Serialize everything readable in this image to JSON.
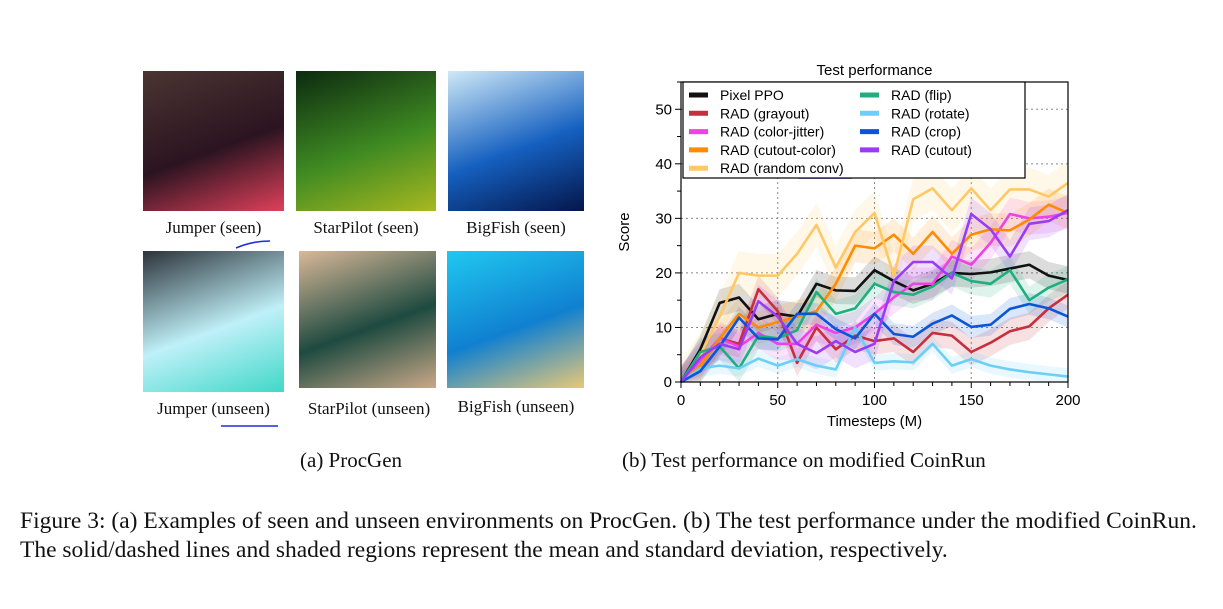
{
  "panel_a": {
    "thumbnails": [
      {
        "label": "Jumper (seen)",
        "colors": [
          "#4a3532",
          "#2b1420",
          "#e0405a"
        ]
      },
      {
        "label": "StarPilot (seen)",
        "colors": [
          "#0c2a10",
          "#3f8a22",
          "#a8b820"
        ]
      },
      {
        "label": "BigFish (seen)",
        "colors": [
          "#cfe9f7",
          "#1560c0",
          "#04164a"
        ]
      },
      {
        "label": "Jumper (unseen)",
        "colors": [
          "#2c333b",
          "#bff0f8",
          "#40d8c8"
        ]
      },
      {
        "label": "StarPilot (unseen)",
        "colors": [
          "#d9b898",
          "#1e4a40",
          "#c9a888"
        ]
      },
      {
        "label": "BigFish (unseen)",
        "colors": [
          "#20c8f0",
          "#1080d0",
          "#e8c878"
        ]
      }
    ],
    "caption": "(a)  ProcGen"
  },
  "panel_b": {
    "caption": "(b)  Test performance on modified CoinRun"
  },
  "figure_caption": "Figure 3: (a) Examples of seen and unseen environments on ProcGen. (b) The test performance under the modified CoinRun. The solid/dashed lines and shaded regions represent the mean and standard deviation, respectively.",
  "annotation_color": "#1a2ee0",
  "chart_data": {
    "type": "line",
    "title": "Test performance",
    "xlabel": "Timesteps (M)",
    "ylabel": "Score",
    "xlim": [
      0,
      200
    ],
    "ylim": [
      0,
      55
    ],
    "xticks": [
      0,
      50,
      100,
      150,
      200
    ],
    "yticks": [
      0,
      10,
      20,
      30,
      40,
      50
    ],
    "grid": true,
    "legend": "top-left",
    "x": [
      0,
      10,
      20,
      30,
      40,
      50,
      60,
      70,
      80,
      90,
      100,
      110,
      120,
      130,
      140,
      150,
      160,
      170,
      180,
      190,
      200
    ],
    "series": [
      {
        "name": "Pixel PPO",
        "color": "#111111",
        "std": 2.5,
        "values": [
          0,
          6,
          14.5,
          15.5,
          11.5,
          12.5,
          12,
          18,
          16.8,
          16.7,
          20.5,
          18.5,
          16.8,
          18,
          20,
          19.8,
          20.1,
          20.8,
          21.5,
          19.5,
          18.7
        ]
      },
      {
        "name": "RAD (grayout)",
        "color": "#c62f3b",
        "std": 2.5,
        "values": [
          0,
          3,
          8,
          7,
          17,
          13,
          3.5,
          10,
          6,
          8.5,
          7.5,
          8,
          5.5,
          9,
          8.5,
          5.5,
          7.2,
          9.3,
          10.2,
          13.5,
          16
        ]
      },
      {
        "name": "RAD (color-jitter)",
        "color": "#f040e8",
        "std": 3,
        "values": [
          0,
          4,
          8,
          6.5,
          9,
          7,
          7,
          10.5,
          9,
          10,
          12.5,
          15.5,
          18,
          18,
          23,
          21.5,
          25.5,
          30.8,
          30,
          30.3,
          31
        ]
      },
      {
        "name": "RAD (cutout-color)",
        "color": "#ff8c00",
        "std": 3,
        "values": [
          0,
          3,
          8,
          12.5,
          10,
          11,
          12,
          13,
          18,
          25,
          24.5,
          27,
          23.5,
          27.5,
          23.5,
          27,
          28,
          27.8,
          29.8,
          32.5,
          31
        ]
      },
      {
        "name": "RAD (random conv)",
        "color": "#ffc864",
        "std": 4,
        "values": [
          0,
          5,
          12,
          20,
          19.5,
          19.5,
          23.5,
          28.8,
          21,
          27.5,
          31,
          19.5,
          33.5,
          35.5,
          31.5,
          35.5,
          31.5,
          35.3,
          35.3,
          34,
          36.5
        ]
      },
      {
        "name": "RAD (flip)",
        "color": "#1faf7f",
        "std": 2.5,
        "values": [
          0,
          5.5,
          6.5,
          2.5,
          8.5,
          8,
          9.5,
          16.5,
          12.5,
          13.5,
          18,
          16.5,
          16,
          17.5,
          20,
          18.5,
          18,
          20.5,
          15,
          17.3,
          18.8
        ]
      },
      {
        "name": "RAD (rotate)",
        "color": "#6ccff6",
        "std": 1.5,
        "values": [
          0,
          2.5,
          3,
          2.5,
          4.3,
          3,
          4.2,
          3,
          2.3,
          10,
          3.5,
          3.8,
          3.6,
          7,
          3,
          4.2,
          3,
          2.3,
          1.8,
          1.4,
          1
        ]
      },
      {
        "name": "RAD (crop)",
        "color": "#0a56d6",
        "std": 2,
        "values": [
          0,
          2,
          6.5,
          11.8,
          8,
          7.8,
          12.5,
          12.5,
          9.7,
          8,
          12.5,
          8.8,
          8.3,
          10.7,
          12.2,
          10.1,
          10.5,
          13.4,
          14.3,
          13.5,
          12
        ]
      },
      {
        "name": "RAD (cutout)",
        "color": "#9b3cf5",
        "std": 3,
        "values": [
          0,
          4.5,
          7,
          6,
          14.8,
          12,
          7,
          5.3,
          7.5,
          5.5,
          7,
          18.5,
          22,
          22,
          19,
          30.8,
          28,
          23,
          29,
          29.5,
          31.5
        ]
      }
    ]
  }
}
